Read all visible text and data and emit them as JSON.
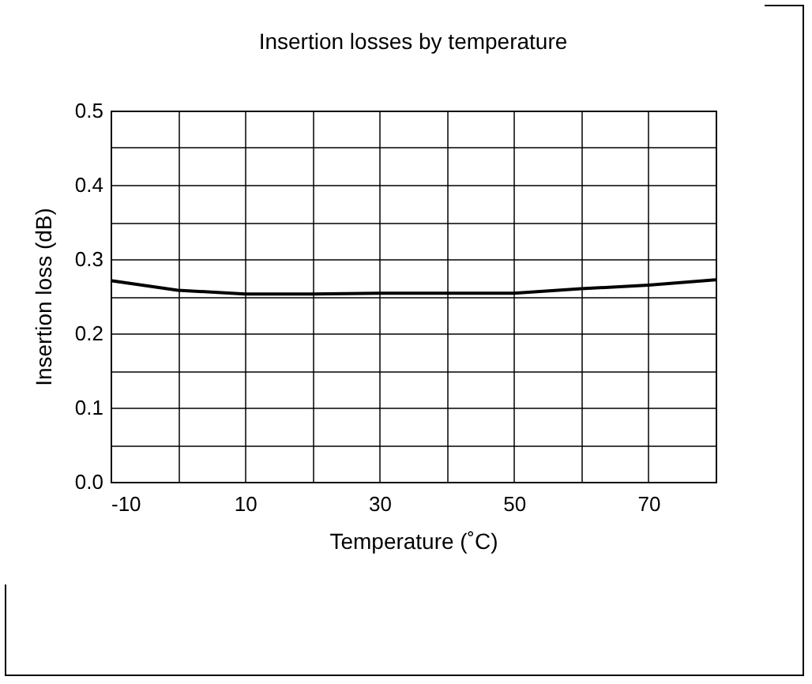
{
  "chart_data": {
    "type": "line",
    "title": "Insertion losses by temperature",
    "xlabel": "Temperature (˚C)",
    "ylabel": "Insertion loss (dB)",
    "x": [
      -10,
      0,
      10,
      20,
      30,
      40,
      50,
      60,
      70,
      80
    ],
    "series": [
      {
        "color": "#000000",
        "values": [
          0.271,
          0.258,
          0.253,
          0.253,
          0.254,
          0.254,
          0.254,
          0.26,
          0.265,
          0.272
        ]
      }
    ],
    "xlim": [
      -10,
      80
    ],
    "xticks": [
      -10,
      {
        "value": 0,
        "label": null
      },
      10,
      {
        "value": 20,
        "label": null
      },
      30,
      {
        "value": 40,
        "label": null
      },
      50,
      {
        "value": 60,
        "label": null
      },
      70,
      {
        "value": 80,
        "label": null
      }
    ],
    "ylim": [
      0,
      0.5
    ],
    "yticks": [
      {
        "value": 0,
        "label": "0.0"
      },
      {
        "value": 0.05,
        "label": null
      },
      0.1,
      {
        "value": 0.15,
        "label": null
      },
      0.2,
      {
        "value": 0.25,
        "label": null
      },
      0.3,
      {
        "value": 0.35,
        "label": null
      },
      0.4,
      {
        "value": 0.45,
        "label": null
      },
      0.5
    ],
    "grid": true,
    "legend": false,
    "marker": "none",
    "line_style": "solid"
  }
}
